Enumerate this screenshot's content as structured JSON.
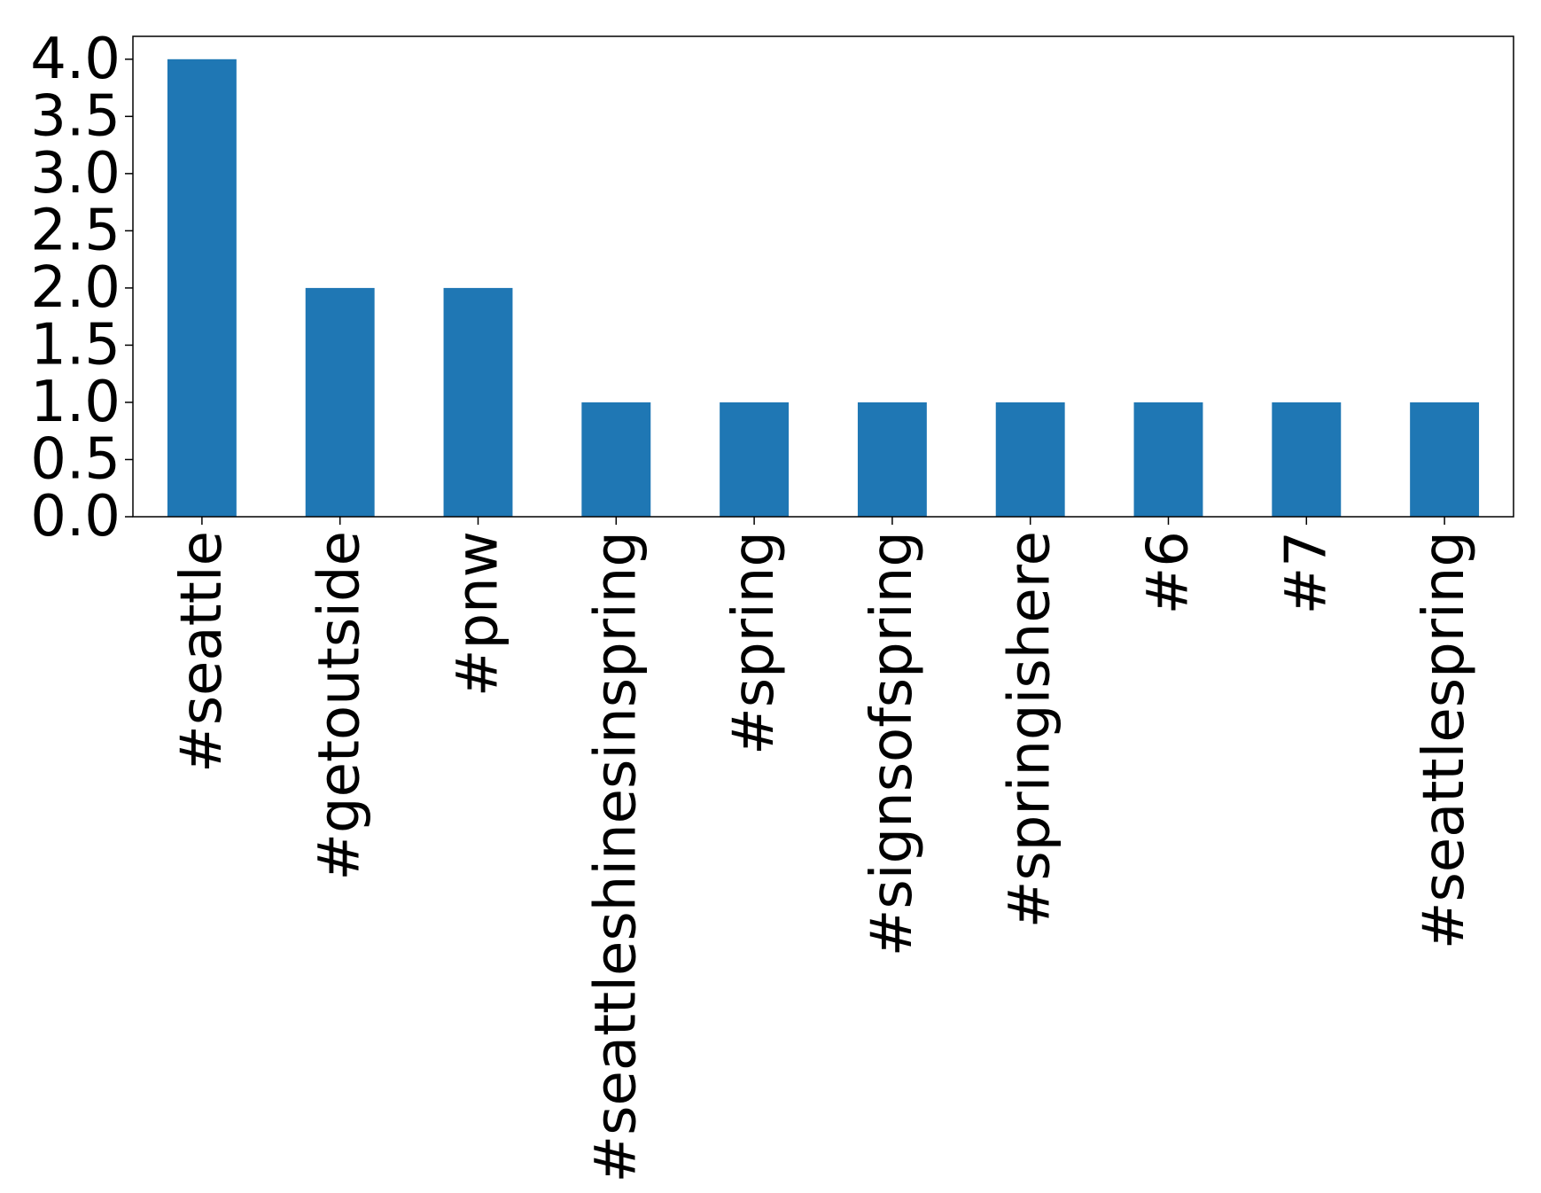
{
  "chart_data": {
    "type": "bar",
    "categories": [
      "#seattle",
      "#getoutside",
      "#pnw",
      "#seattleshinesinspring",
      "#spring",
      "#signsofspring",
      "#springishere",
      "#6",
      "#7",
      "#seattlespring"
    ],
    "values": [
      4,
      2,
      2,
      1,
      1,
      1,
      1,
      1,
      1,
      1
    ],
    "ylim": [
      0,
      4.2
    ],
    "yticks": [
      "0.0",
      "0.5",
      "1.0",
      "1.5",
      "2.0",
      "2.5",
      "3.0",
      "3.5",
      "4.0"
    ],
    "bar_color": "#1f77b4",
    "grid": false,
    "legend": "none"
  }
}
